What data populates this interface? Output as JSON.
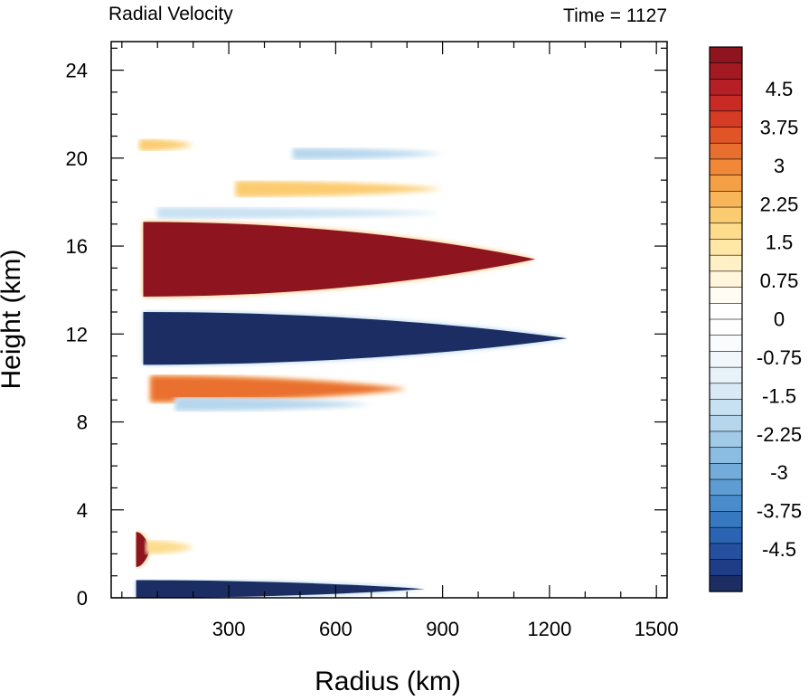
{
  "chart_data": {
    "type": "heatmap",
    "title_left": "Radial Velocity",
    "title_right": "Time = 1127",
    "xlabel": "Radius (km)",
    "ylabel": "Height (km)",
    "xlim": [
      -30,
      1530
    ],
    "ylim": [
      0,
      25.3
    ],
    "x_ticks": [
      300,
      600,
      900,
      1200,
      1500
    ],
    "y_ticks": [
      0,
      4,
      8,
      12,
      16,
      20,
      24
    ],
    "x_tick_labels": [
      "300",
      "600",
      "900",
      "1200",
      "1500"
    ],
    "y_tick_labels": [
      "0",
      "4",
      "8",
      "12",
      "16",
      "20",
      "24"
    ],
    "colorbar": {
      "labels": [
        "4.5",
        "3.75",
        "3",
        "2.25",
        "1.5",
        "0.75",
        "0",
        "-0.75",
        "-1.5",
        "-2.25",
        "-3",
        "-3.75",
        "-4.5"
      ],
      "colors": [
        "#1b2d63",
        "#1f3d87",
        "#24509f",
        "#2b64b3",
        "#3779c0",
        "#4a8ccb",
        "#5d9dd3",
        "#73acda",
        "#8bbce1",
        "#a1cae7",
        "#b5d6ed",
        "#c8e1f2",
        "#d9eaf6",
        "#e8f2f9",
        "#f2f7fb",
        "#f9fbfd",
        "#ffffff",
        "#ffffff",
        "#fffdf3",
        "#fff6dc",
        "#fff0c6",
        "#ffe7a8",
        "#fddc8c",
        "#fbcb70",
        "#f8b658",
        "#f5a045",
        "#f08838",
        "#e96f2e",
        "#e05428",
        "#d63b25",
        "#c92a24",
        "#b61f25",
        "#a31a23",
        "#8e1520"
      ]
    },
    "features": [
      {
        "kind": "outflow",
        "value": 5.2,
        "r0": 60,
        "r1": 1160,
        "z_center": 15.4,
        "thickness": 3.4
      },
      {
        "kind": "inflow",
        "value": -5.0,
        "r0": 60,
        "r1": 1250,
        "z_center": 11.8,
        "thickness": 2.4
      },
      {
        "kind": "outflow",
        "value": 3.0,
        "r0": 80,
        "r1": 800,
        "z_center": 9.5,
        "thickness": 1.2
      },
      {
        "kind": "inflow",
        "value": -2.0,
        "r0": 150,
        "r1": 700,
        "z_center": 8.8,
        "thickness": 0.6
      },
      {
        "kind": "inflow",
        "value": -1.8,
        "r0": 100,
        "r1": 900,
        "z_center": 17.5,
        "thickness": 0.5
      },
      {
        "kind": "inflow",
        "value": -2.0,
        "r0": 480,
        "r1": 900,
        "z_center": 20.2,
        "thickness": 0.5
      },
      {
        "kind": "outflow",
        "value": 2.0,
        "r0": 320,
        "r1": 900,
        "z_center": 18.6,
        "thickness": 0.7
      },
      {
        "kind": "outflow",
        "value": 2.0,
        "r0": 50,
        "r1": 200,
        "z_center": 20.6,
        "thickness": 0.5
      },
      {
        "kind": "inflow",
        "value": -5.0,
        "r0": 40,
        "r1": 850,
        "z_center": 0.4,
        "thickness": 0.8
      },
      {
        "kind": "outflow",
        "value": 5.0,
        "r0": 40,
        "r1": 80,
        "z_center": 2.2,
        "thickness": 1.6
      },
      {
        "kind": "outflow",
        "value": 1.5,
        "r0": 70,
        "r1": 200,
        "z_center": 2.3,
        "thickness": 0.6
      }
    ]
  }
}
